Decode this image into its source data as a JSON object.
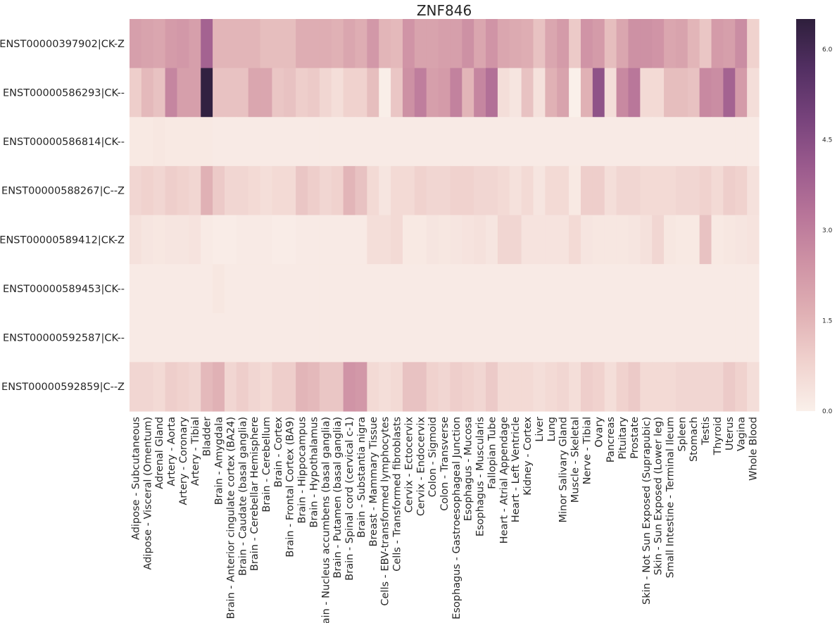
{
  "chart_data": {
    "type": "heatmap",
    "title": "ZNF846",
    "rows": [
      "ENST00000397902|CK-Z",
      "ENST00000586293|CK--",
      "ENST00000586814|CK--",
      "ENST00000588267|C--Z",
      "ENST00000589412|CK-Z",
      "ENST00000589453|CK--",
      "ENST00000592587|CK--",
      "ENST00000592859|C--Z"
    ],
    "columns": [
      "Adipose - Subcutaneous",
      "Adipose - Visceral (Omentum)",
      "Adrenal Gland",
      "Artery - Aorta",
      "Artery - Coronary",
      "Artery - Tibial",
      "Bladder",
      "Brain - Amygdala",
      "Brain - Anterior cingulate cortex (BA24)",
      "Brain - Caudate (basal ganglia)",
      "Brain - Cerebellar Hemisphere",
      "Brain - Cerebellum",
      "Brain - Cortex",
      "Brain - Frontal Cortex (BA9)",
      "Brain - Hippocampus",
      "Brain - Hypothalamus",
      "Brain - Nucleus accumbens (basal ganglia)",
      "Brain - Putamen (basal ganglia)",
      "Brain - Spinal cord (cervical c-1)",
      "Brain - Substantia nigra",
      "Breast - Mammary Tissue",
      "Cells - EBV-transformed lymphocytes",
      "Cells - Transformed fibroblasts",
      "Cervix - Ectocervix",
      "Cervix - Endocervix",
      "Colon - Sigmoid",
      "Colon - Transverse",
      "Esophagus - Gastroesophageal Junction",
      "Esophagus - Mucosa",
      "Esophagus - Muscularis",
      "Fallopian Tube",
      "Heart - Atrial Appendage",
      "Heart - Left Ventricle",
      "Kidney - Cortex",
      "Liver",
      "Lung",
      "Minor Salivary Gland",
      "Muscle - Skeletal",
      "Nerve - Tibial",
      "Ovary",
      "Pancreas",
      "Pituitary",
      "Prostate",
      "Skin - Not Sun Exposed (Suprapubic)",
      "Skin - Sun Exposed (Lower leg)",
      "Small Intestine - Terminal Ileum",
      "Spleen",
      "Stomach",
      "Testis",
      "Thyroid",
      "Uterus",
      "Vagina",
      "Whole Blood"
    ],
    "values": [
      [
        2.1,
        2.0,
        1.9,
        2.2,
        2.3,
        2.1,
        3.8,
        1.5,
        1.5,
        1.5,
        1.5,
        1.3,
        1.3,
        1.3,
        1.7,
        1.7,
        1.7,
        1.6,
        1.9,
        1.7,
        2.3,
        1.5,
        1.4,
        2.4,
        2.0,
        2.0,
        2.1,
        2.1,
        2.5,
        1.9,
        2.4,
        1.9,
        1.8,
        1.7,
        1.2,
        1.9,
        2.2,
        1.0,
        2.4,
        2.2,
        1.3,
        1.9,
        2.5,
        2.5,
        2.4,
        1.9,
        2.0,
        1.5,
        1.1,
        2.2,
        2.1,
        2.6,
        0.8
      ],
      [
        0.9,
        1.4,
        1.2,
        2.8,
        2.1,
        2.1,
        6.4,
        1.2,
        1.2,
        1.2,
        1.9,
        1.9,
        1.1,
        1.2,
        0.9,
        1.0,
        0.7,
        0.5,
        0.8,
        0.8,
        1.3,
        0.05,
        1.1,
        2.5,
        3.0,
        2.1,
        2.2,
        2.9,
        1.5,
        2.8,
        3.4,
        0.5,
        0.3,
        1.2,
        0.4,
        1.6,
        2.0,
        0.0,
        1.6,
        4.3,
        0.5,
        2.7,
        3.2,
        0.6,
        0.6,
        1.3,
        1.3,
        1.2,
        2.7,
        2.6,
        3.8,
        2.2,
        0.5
      ],
      [
        0.2,
        0.2,
        0.25,
        0.2,
        0.2,
        0.2,
        0.2,
        0.15,
        0.15,
        0.15,
        0.15,
        0.15,
        0.15,
        0.15,
        0.15,
        0.15,
        0.15,
        0.15,
        0.15,
        0.15,
        0.15,
        0.15,
        0.15,
        0.15,
        0.15,
        0.15,
        0.15,
        0.15,
        0.15,
        0.15,
        0.15,
        0.15,
        0.15,
        0.15,
        0.15,
        0.15,
        0.15,
        0.15,
        0.15,
        0.15,
        0.15,
        0.15,
        0.15,
        0.15,
        0.15,
        0.15,
        0.15,
        0.15,
        0.15,
        0.15,
        0.15,
        0.15,
        0.15
      ],
      [
        0.7,
        0.8,
        0.7,
        0.9,
        0.8,
        0.7,
        1.6,
        1.0,
        0.7,
        0.7,
        0.6,
        0.5,
        0.6,
        0.6,
        1.1,
        0.9,
        0.7,
        0.8,
        1.5,
        1.2,
        0.6,
        0.3,
        0.6,
        0.6,
        0.8,
        0.7,
        0.7,
        0.8,
        0.8,
        0.7,
        0.7,
        0.6,
        0.4,
        0.6,
        0.3,
        0.6,
        0.6,
        0.2,
        0.9,
        0.9,
        0.5,
        0.7,
        0.7,
        0.6,
        0.6,
        0.6,
        0.7,
        0.7,
        0.8,
        0.6,
        0.9,
        0.8,
        0.4
      ],
      [
        0.4,
        0.3,
        0.25,
        0.3,
        0.3,
        0.35,
        0.15,
        0.1,
        0.1,
        0.15,
        0.15,
        0.15,
        0.1,
        0.1,
        0.15,
        0.15,
        0.15,
        0.15,
        0.15,
        0.15,
        0.5,
        0.5,
        0.6,
        0.2,
        0.2,
        0.3,
        0.25,
        0.3,
        0.35,
        0.4,
        0.3,
        0.7,
        0.7,
        0.35,
        0.35,
        0.35,
        0.35,
        0.6,
        0.3,
        0.25,
        0.25,
        0.25,
        0.3,
        0.4,
        0.7,
        0.25,
        0.2,
        0.2,
        1.2,
        0.2,
        0.25,
        0.3,
        0.35
      ],
      [
        0.15,
        0.15,
        0.15,
        0.15,
        0.15,
        0.15,
        0.15,
        0.25,
        0.15,
        0.15,
        0.15,
        0.15,
        0.15,
        0.15,
        0.15,
        0.15,
        0.15,
        0.15,
        0.15,
        0.15,
        0.15,
        0.15,
        0.15,
        0.15,
        0.15,
        0.15,
        0.15,
        0.15,
        0.15,
        0.15,
        0.15,
        0.15,
        0.15,
        0.15,
        0.15,
        0.15,
        0.15,
        0.15,
        0.15,
        0.15,
        0.15,
        0.15,
        0.15,
        0.15,
        0.15,
        0.15,
        0.15,
        0.15,
        0.15,
        0.15,
        0.15,
        0.15,
        0.15
      ],
      [
        0.15,
        0.15,
        0.15,
        0.15,
        0.15,
        0.15,
        0.15,
        0.15,
        0.15,
        0.15,
        0.15,
        0.15,
        0.15,
        0.15,
        0.15,
        0.15,
        0.15,
        0.15,
        0.15,
        0.15,
        0.15,
        0.15,
        0.15,
        0.15,
        0.15,
        0.15,
        0.15,
        0.15,
        0.15,
        0.15,
        0.15,
        0.15,
        0.15,
        0.15,
        0.15,
        0.15,
        0.15,
        0.15,
        0.15,
        0.15,
        0.15,
        0.15,
        0.15,
        0.15,
        0.15,
        0.15,
        0.15,
        0.15,
        0.15,
        0.15,
        0.15,
        0.15,
        0.15
      ],
      [
        0.7,
        0.7,
        0.6,
        0.9,
        0.8,
        0.7,
        1.4,
        1.6,
        0.7,
        0.9,
        0.7,
        0.6,
        0.9,
        0.9,
        1.5,
        1.4,
        1.1,
        1.1,
        2.4,
        2.3,
        0.6,
        0.5,
        0.6,
        1.2,
        1.2,
        0.8,
        0.7,
        0.9,
        0.8,
        0.7,
        1.0,
        0.6,
        0.6,
        0.6,
        0.5,
        0.6,
        0.7,
        0.5,
        0.9,
        0.8,
        0.5,
        0.8,
        1.0,
        0.6,
        0.6,
        0.6,
        0.7,
        0.7,
        0.7,
        0.7,
        1.0,
        0.8,
        0.5
      ]
    ],
    "vmin": 0.0,
    "vmax": 6.5,
    "colorbar_ticks": [
      0.0,
      1.5,
      3.0,
      4.5,
      6.0
    ],
    "colorbar_tick_labels": [
      "0.0",
      "1.5",
      "3.0",
      "4.5",
      "6.0"
    ],
    "colormap": [
      "#faf0ea",
      "#f0d2ce",
      "#e0b0b4",
      "#cf93a5",
      "#b87599",
      "#9a5a8d",
      "#76427b",
      "#522f62",
      "#2e1f3c"
    ]
  }
}
